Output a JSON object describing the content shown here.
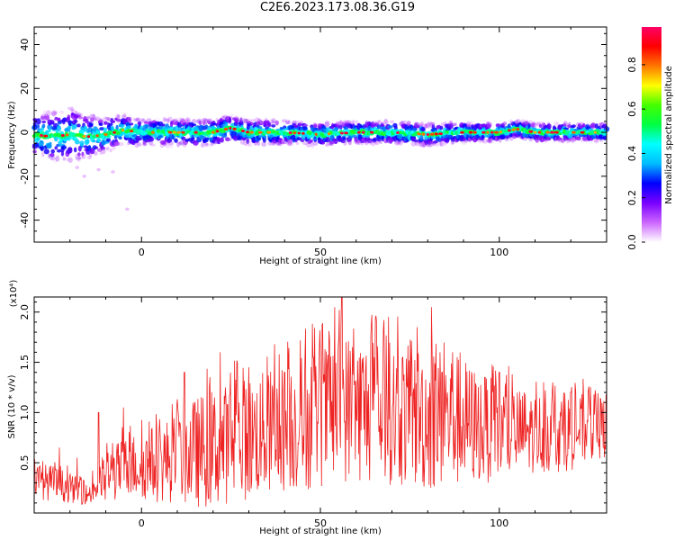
{
  "title": "C2E6.2023.173.08.36.G19",
  "chart_data": [
    {
      "type": "heatmap",
      "xlabel": "Height of straight line (km)",
      "ylabel": "Frequency (Hz)",
      "xlim": [
        -30,
        130
      ],
      "ylim": [
        -50,
        48
      ],
      "xticks": [
        0,
        50,
        100
      ],
      "yticks": [
        -40,
        -20,
        0,
        20,
        40
      ],
      "colorbar": {
        "label": "Normalized spectral amplitude",
        "range": [
          0,
          0.97
        ],
        "ticks": [
          0.0,
          0.2,
          0.4,
          0.6,
          0.8
        ],
        "colors": [
          "#ffffff",
          "#cc66ff",
          "#7a00ff",
          "#0000ff",
          "#00bbff",
          "#00ffff",
          "#00ff44",
          "#44ff00",
          "#ffff00",
          "#ff7700",
          "#ff0000",
          "#ff0066"
        ]
      },
      "ridge": {
        "center_freq_hz": [
          [
            -30,
            -1
          ],
          [
            -25,
            -2
          ],
          [
            -20,
            -1
          ],
          [
            -15,
            -2
          ],
          [
            -10,
            -1
          ],
          [
            -5,
            1
          ],
          [
            0,
            0
          ],
          [
            10,
            0
          ],
          [
            20,
            0
          ],
          [
            25,
            2
          ],
          [
            30,
            0
          ],
          [
            40,
            0
          ],
          [
            50,
            -1
          ],
          [
            60,
            0
          ],
          [
            70,
            0
          ],
          [
            80,
            -1
          ],
          [
            90,
            0
          ],
          [
            100,
            0
          ],
          [
            105,
            1.5
          ],
          [
            110,
            0
          ],
          [
            120,
            0
          ],
          [
            130,
            0
          ]
        ],
        "band_halfwidth_hz": [
          [
            -30,
            10
          ],
          [
            -20,
            12
          ],
          [
            -10,
            8
          ],
          [
            0,
            6
          ],
          [
            25,
            6
          ],
          [
            50,
            5
          ],
          [
            80,
            5
          ],
          [
            100,
            4
          ],
          [
            130,
            4
          ]
        ],
        "scatter_points_hz": [
          [
            -18,
            -16
          ],
          [
            -16,
            -20
          ],
          [
            -12,
            -17
          ],
          [
            -8,
            -18
          ],
          [
            -4,
            -35
          ]
        ]
      }
    },
    {
      "type": "line",
      "xlabel": "Height of straight line (km)",
      "ylabel": "SNR (10 * v/v)",
      "y_multiplier": "(x10⁴)",
      "xlim": [
        -30,
        130
      ],
      "ylim": [
        0,
        2.15
      ],
      "xticks": [
        0,
        50,
        100
      ],
      "yticks": [
        0.5,
        1.0,
        1.5,
        2.0
      ],
      "ytick_labels": [
        "0.5",
        "1.0",
        "1.5",
        "2.0"
      ],
      "color": "#ee2222",
      "envelope": {
        "x": [
          -30,
          -25,
          -20,
          -15,
          -10,
          -5,
          0,
          5,
          10,
          15,
          20,
          25,
          30,
          35,
          40,
          45,
          50,
          55,
          60,
          65,
          70,
          75,
          80,
          85,
          90,
          95,
          100,
          105,
          110,
          115,
          120,
          125,
          130
        ],
        "mean": [
          0.32,
          0.3,
          0.25,
          0.18,
          0.35,
          0.45,
          0.48,
          0.5,
          0.55,
          0.6,
          0.65,
          0.7,
          0.75,
          0.8,
          0.85,
          0.9,
          0.95,
          1.05,
          1.05,
          1.0,
          1.0,
          0.95,
          0.95,
          0.95,
          0.9,
          0.85,
          0.8,
          0.8,
          0.8,
          0.8,
          0.8,
          0.85,
          0.85
        ],
        "amplitude": [
          0.18,
          0.18,
          0.15,
          0.1,
          0.28,
          0.3,
          0.35,
          0.4,
          0.45,
          0.55,
          0.6,
          0.6,
          0.62,
          0.62,
          0.65,
          0.7,
          0.7,
          0.75,
          0.75,
          0.72,
          0.72,
          0.72,
          0.75,
          0.7,
          0.65,
          0.55,
          0.5,
          0.45,
          0.4,
          0.4,
          0.38,
          0.35,
          0.3
        ]
      },
      "peaks": [
        [
          -30,
          0.52
        ],
        [
          -23,
          0.65
        ],
        [
          -18,
          0.55
        ],
        [
          -12,
          1.0
        ],
        [
          -5,
          1.05
        ],
        [
          12,
          1.4
        ],
        [
          19,
          1.25
        ],
        [
          22,
          1.6
        ],
        [
          30,
          1.45
        ],
        [
          40,
          1.4
        ],
        [
          48,
          1.55
        ],
        [
          50,
          1.55
        ],
        [
          56,
          2.15
        ],
        [
          59,
          1.65
        ],
        [
          62,
          1.55
        ],
        [
          65,
          1.55
        ],
        [
          69,
          1.95
        ],
        [
          73,
          1.55
        ],
        [
          77,
          1.85
        ],
        [
          81,
          2.05
        ],
        [
          84,
          1.4
        ],
        [
          87,
          1.6
        ],
        [
          96,
          1.35
        ],
        [
          100,
          1.4
        ],
        [
          107,
          1.2
        ],
        [
          115,
          1.3
        ],
        [
          120,
          1.2
        ],
        [
          127,
          1.18
        ]
      ]
    }
  ]
}
